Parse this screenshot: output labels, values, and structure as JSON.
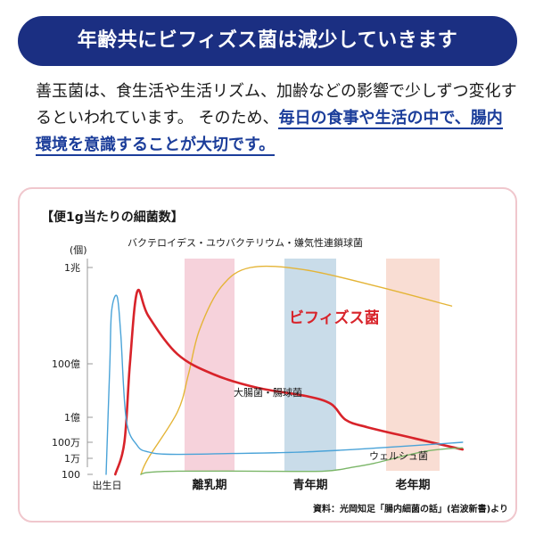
{
  "header": {
    "title": "年齢共にビフィズス菌は減少していきます"
  },
  "intro": {
    "plain": "善玉菌は、食生活や生活リズム、加齢などの影響で少しずつ変化するといわれています。 そのため、",
    "emphasis": "毎日の食事や生活の中で、腸内環境を意識することが大切です。"
  },
  "chart_data": {
    "type": "line",
    "title": "【便1g当たりの細菌数】",
    "ylabel": "(個)",
    "y_ticks": [
      "1兆",
      "100億",
      "1億",
      "100万",
      "1万",
      "100"
    ],
    "x_ticks": [
      "出生日",
      "離乳期",
      "青年期",
      "老年期"
    ],
    "bands": [
      {
        "label": "離乳期",
        "color": "#f6d2db"
      },
      {
        "label": "青年期",
        "color": "#c9dce9"
      },
      {
        "label": "老年期",
        "color": "#f9ddd3"
      }
    ],
    "series": [
      {
        "name": "バクテロイデス・ユウバクテリウム・嫌気性連鎖球菌",
        "color": "#e4b436",
        "points": [
          [
            0.1,
            2.0
          ],
          [
            0.12,
            4.0
          ],
          [
            0.2,
            8.2
          ],
          [
            0.23,
            9.6
          ],
          [
            0.26,
            10.7
          ],
          [
            0.32,
            11.6
          ],
          [
            0.4,
            12.0
          ],
          [
            0.55,
            11.95
          ],
          [
            0.75,
            11.6
          ],
          [
            0.95,
            11.2
          ]
        ]
      },
      {
        "name": "ビフィズス菌",
        "color": "#d8232a",
        "points": [
          [
            0.03,
            2.0
          ],
          [
            0.055,
            6.0
          ],
          [
            0.07,
            10.0
          ],
          [
            0.09,
            11.5
          ],
          [
            0.12,
            11.0
          ],
          [
            0.2,
            10.2
          ],
          [
            0.3,
            9.6
          ],
          [
            0.42,
            9.1
          ],
          [
            0.55,
            8.8
          ],
          [
            0.62,
            8.5
          ],
          [
            0.66,
            7.8
          ],
          [
            0.72,
            7.2
          ],
          [
            0.85,
            6.3
          ],
          [
            0.98,
            5.1
          ]
        ]
      },
      {
        "name": "大腸菌・腸球菌",
        "color": "#4aa3d8",
        "points": [
          [
            0.005,
            2.0
          ],
          [
            0.015,
            10.0
          ],
          [
            0.02,
            11.1
          ],
          [
            0.035,
            11.4
          ],
          [
            0.045,
            10.6
          ],
          [
            0.06,
            7.8
          ],
          [
            0.09,
            5.6
          ],
          [
            0.12,
            4.8
          ],
          [
            0.18,
            4.5
          ],
          [
            0.35,
            4.6
          ],
          [
            0.55,
            4.8
          ],
          [
            0.75,
            5.3
          ],
          [
            0.98,
            6.0
          ]
        ]
      },
      {
        "name": "ウェルシュ菌",
        "color": "#7bb668",
        "points": [
          [
            0.1,
            2.0
          ],
          [
            0.12,
            2.25
          ],
          [
            0.2,
            2.4
          ],
          [
            0.4,
            2.4
          ],
          [
            0.6,
            2.4
          ],
          [
            0.68,
            2.9
          ],
          [
            0.74,
            3.4
          ],
          [
            0.82,
            4.3
          ],
          [
            0.88,
            4.9
          ],
          [
            0.94,
            5.2
          ],
          [
            0.98,
            5.3
          ]
        ]
      }
    ]
  },
  "labels": {
    "bacteroides": "バクテロイデス・ユウバクテリウム・嫌気性連鎖球菌",
    "bifido": "ビフィズス菌",
    "ecoli": "大腸菌・腸球菌",
    "welch": "ウェルシュ菌"
  },
  "source": "資料：光岡知足「腸内細菌の話」(岩波新書)より"
}
